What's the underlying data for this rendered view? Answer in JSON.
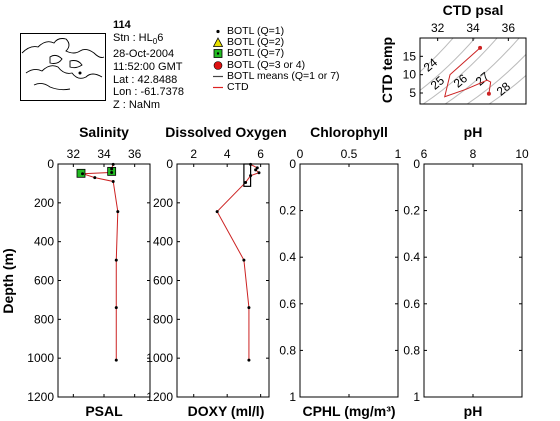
{
  "station": {
    "id": "114",
    "stn_prefix": "Stn : HL",
    "stn_sub": "0",
    "stn_suffix": "6",
    "date": "28-Oct-2004",
    "time": "11:52:00 GMT",
    "lat": "Lat : 42.8488",
    "lon": "Lon : -61.7378",
    "z": "Z : NaNm"
  },
  "legend": {
    "items": [
      {
        "label": "BOTL (Q=1)",
        "marker": "dot",
        "color": "#000000"
      },
      {
        "label": "BOTL (Q=2)",
        "marker": "triangle",
        "color": "#e8e000"
      },
      {
        "label": "BOTL (Q=7)",
        "marker": "square",
        "color": "#22bb22"
      },
      {
        "label": "BOTL (Q=3 or 4)",
        "marker": "circle",
        "color": "#dd1111"
      },
      {
        "label": "BOTL means (Q=1 or 7)",
        "marker": "line",
        "color": "#444444"
      },
      {
        "label": "CTD",
        "marker": "line",
        "color": "#dd2222"
      }
    ]
  },
  "chart_data": [
    {
      "type": "line",
      "title": "CTD psal",
      "xlabel": "",
      "ylabel": "CTD temp",
      "xlim": [
        31,
        37
      ],
      "ylim": [
        2,
        20
      ],
      "xticks": [
        "32",
        "34",
        "36"
      ],
      "yticks": [
        "5",
        "10",
        "15"
      ],
      "contour_labels": [
        "24",
        "25",
        "26",
        "27",
        "28"
      ],
      "series": [
        {
          "x": [
            34.4,
            32.7,
            32.4,
            33.6,
            34.8,
            35.0,
            34.9
          ],
          "y": [
            17.3,
            10.0,
            4.0,
            6.0,
            8.5,
            8.0,
            4.8
          ]
        }
      ],
      "markers": [
        {
          "x": 34.4,
          "y": 17.3
        },
        {
          "x": 34.9,
          "y": 4.8
        }
      ]
    },
    {
      "type": "line",
      "title": "Salinity",
      "xlabel": "PSAL",
      "ylabel": "Depth (m)",
      "xlim": [
        31,
        37
      ],
      "ylim": [
        1200,
        0
      ],
      "xticks": [
        "32",
        "34",
        "36"
      ],
      "yticks": [
        "0",
        "200",
        "400",
        "600",
        "800",
        "1000",
        "1200"
      ],
      "series": [
        {
          "name": "CTD",
          "x": [
            34.6,
            34.4,
            32.6,
            33.4,
            34.6,
            34.9,
            34.8,
            34.8,
            34.8
          ],
          "y": [
            2,
            44,
            50,
            70,
            90,
            245,
            495,
            740,
            1010
          ]
        }
      ],
      "bottle_points": [
        {
          "x": 34.6,
          "y": 2
        },
        {
          "x": 34.5,
          "y": 25
        },
        {
          "x": 34.5,
          "y": 44
        },
        {
          "x": 32.6,
          "y": 50
        },
        {
          "x": 33.4,
          "y": 70
        },
        {
          "x": 34.6,
          "y": 90
        },
        {
          "x": 34.9,
          "y": 245
        },
        {
          "x": 34.8,
          "y": 495
        },
        {
          "x": 34.8,
          "y": 740
        },
        {
          "x": 34.8,
          "y": 1010
        }
      ],
      "q7_points": [
        {
          "x": 32.5,
          "y": 48
        },
        {
          "x": 34.5,
          "y": 38
        }
      ]
    },
    {
      "type": "line",
      "title": "Dissolved Oxygen",
      "xlabel": "DOXY (ml/l)",
      "ylabel": "",
      "xlim": [
        1,
        6.5
      ],
      "ylim": [
        1200,
        0
      ],
      "xticks": [
        "2",
        "4",
        "6"
      ],
      "yticks": [
        "0",
        "200",
        "400",
        "600",
        "800",
        "1000",
        "1200"
      ],
      "series": [
        {
          "name": "CTD",
          "x": [
            5.4,
            5.8,
            5.7,
            5.9,
            5.4,
            5.1,
            3.4,
            5.0,
            5.3,
            5.3
          ],
          "y": [
            2,
            20,
            30,
            45,
            60,
            95,
            245,
            495,
            740,
            1010
          ]
        }
      ],
      "bottle_points": [
        {
          "x": 5.4,
          "y": 2
        },
        {
          "x": 5.8,
          "y": 20
        },
        {
          "x": 5.7,
          "y": 30
        },
        {
          "x": 5.9,
          "y": 45
        },
        {
          "x": 5.4,
          "y": 60
        },
        {
          "x": 5.1,
          "y": 95
        },
        {
          "x": 3.4,
          "y": 245
        },
        {
          "x": 5.0,
          "y": 495
        },
        {
          "x": 5.3,
          "y": 740
        },
        {
          "x": 5.3,
          "y": 1010
        }
      ],
      "box": {
        "x": [
          5.0,
          5.4
        ],
        "y": [
          0,
          115
        ]
      }
    },
    {
      "type": "line",
      "title": "Chlorophyll",
      "xlabel": "CPHL (mg/m³)",
      "ylabel": "",
      "xlim": [
        0,
        1
      ],
      "ylim": [
        1,
        0
      ],
      "xticks": [
        "0",
        "0.5",
        "1"
      ],
      "yticks": [
        "0",
        "0.2",
        "0.4",
        "0.6",
        "0.8",
        "1"
      ],
      "series": []
    },
    {
      "type": "line",
      "title": "pH",
      "xlabel": "pH",
      "ylabel": "",
      "xlim": [
        6,
        10
      ],
      "ylim": [
        1,
        0
      ],
      "xticks": [
        "6",
        "8",
        "10"
      ],
      "yticks": [
        "0",
        "0.2",
        "0.4",
        "0.6",
        "0.8",
        "1"
      ],
      "series": []
    }
  ]
}
